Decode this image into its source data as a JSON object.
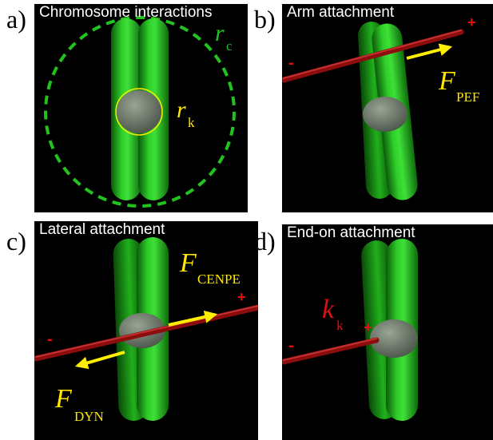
{
  "panels": {
    "a": {
      "letter": "a)",
      "title": "Chromosome interactions",
      "rc_symbol": "r",
      "rc_sub": "c",
      "rk_symbol": "r",
      "rk_sub": "k"
    },
    "b": {
      "letter": "b)",
      "title": "Arm attachment",
      "minus": "-",
      "plus": "+",
      "f_symbol": "F",
      "f_sub": "PEF"
    },
    "c": {
      "letter": "c)",
      "title": "Lateral attachment",
      "minus": "-",
      "plus": "+",
      "f1_symbol": "F",
      "f1_sub": "CENPE",
      "f2_symbol": "F",
      "f2_sub": "DYN"
    },
    "d": {
      "letter": "d)",
      "title": "End-on attachment",
      "minus": "-",
      "plus": "+",
      "k_symbol": "k",
      "k_sub": "k"
    }
  },
  "colors": {
    "panel_bg": "#000000",
    "chromatid": "#22c31e",
    "kinetochore": "#6f7a6d",
    "microtubule": "#8b0d0d",
    "force_arrow": "#ffee00",
    "label_yellow": "#ffe600",
    "label_green": "#22c31e",
    "label_red": "#e01010"
  }
}
